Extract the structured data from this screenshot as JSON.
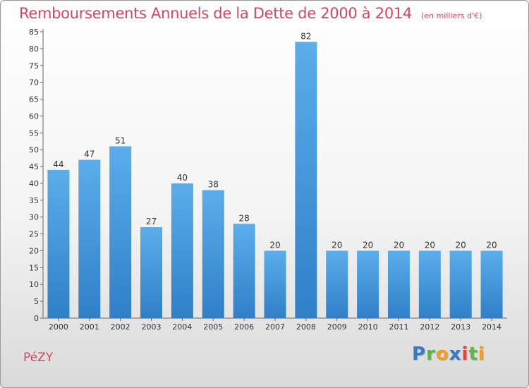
{
  "header": {
    "title": "Remboursements Annuels de la Dette de 2000 à 2014",
    "unit": "(en milliers d'€)"
  },
  "footer": {
    "commune": "PéZY",
    "logo": "Proxiti"
  },
  "colors": {
    "bar_light": "#5aaeea",
    "bar_dark": "#2f80c8",
    "title": "#d1485f"
  },
  "chart_data": {
    "type": "bar",
    "title": "Remboursements Annuels de la Dette de 2000 à 2014",
    "subtitle": "(en milliers d'€)",
    "categories": [
      "2000",
      "2001",
      "2002",
      "2003",
      "2004",
      "2005",
      "2006",
      "2007",
      "2008",
      "2009",
      "2010",
      "2011",
      "2012",
      "2013",
      "2014"
    ],
    "values": [
      44,
      47,
      51,
      27,
      40,
      38,
      28,
      20,
      82,
      20,
      20,
      20,
      20,
      20,
      20
    ],
    "ylim": [
      0,
      85
    ],
    "ytick_step": 5,
    "grid": false,
    "legend": "none"
  }
}
